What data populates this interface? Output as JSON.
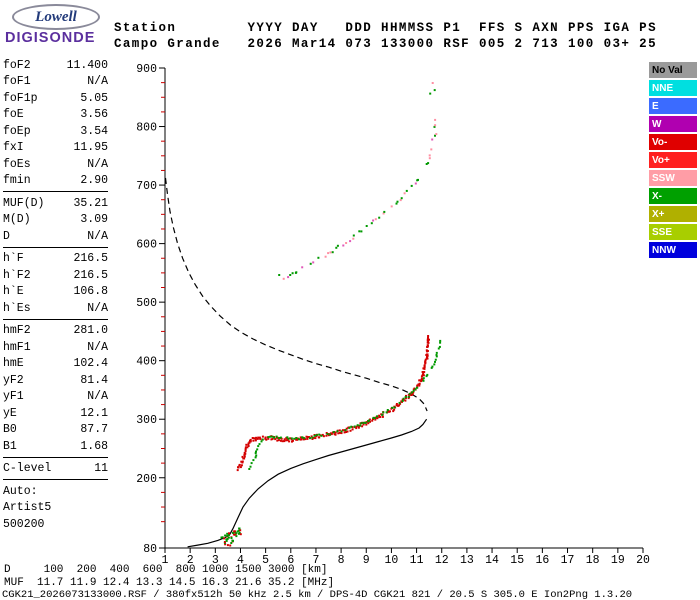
{
  "header": {
    "logo_top": "Lowell",
    "logo_bottom": "DIGISONDE",
    "line1": "Station        YYYY DAY   DDD HHMMSS P1  FFS S AXN PPS IGA PS",
    "line2": "Campo Grande   2026 Mar14 073 133000 RSF 005 2 713 100 03+ 25"
  },
  "params": {
    "groups": [
      {
        "rows": [
          [
            "foF2",
            "11.400"
          ],
          [
            "foF1",
            "N/A"
          ],
          [
            "foF1p",
            "5.05"
          ],
          [
            "foE",
            "3.56"
          ],
          [
            "foEp",
            "3.54"
          ],
          [
            "fxI",
            "11.95"
          ],
          [
            "foEs",
            "N/A"
          ],
          [
            "fmin",
            "2.90"
          ]
        ]
      },
      {
        "rows": [
          [
            "MUF(D)",
            "35.21"
          ],
          [
            "M(D)",
            "3.09"
          ],
          [
            "D",
            "N/A"
          ]
        ]
      },
      {
        "rows": [
          [
            "h`F",
            "216.5"
          ],
          [
            "h`F2",
            "216.5"
          ],
          [
            "h`E",
            "106.8"
          ],
          [
            "h`Es",
            "N/A"
          ]
        ]
      },
      {
        "rows": [
          [
            "hmF2",
            "281.0"
          ],
          [
            "hmF1",
            "N/A"
          ],
          [
            "hmE",
            "102.4"
          ],
          [
            "yF2",
            "81.4"
          ],
          [
            "yF1",
            "N/A"
          ],
          [
            "yE",
            "12.1"
          ],
          [
            "B0",
            "87.7"
          ],
          [
            "B1",
            "1.68"
          ]
        ]
      },
      {
        "rows": [
          [
            "C-level",
            "11"
          ]
        ]
      },
      {
        "rows": [
          [
            "Auto:",
            ""
          ],
          [
            "Artist5",
            ""
          ],
          [
            "500200",
            ""
          ]
        ]
      }
    ]
  },
  "legend": {
    "items": [
      {
        "label": "No Val",
        "bg": "#9a9a9a",
        "fg": "#000000"
      },
      {
        "label": "NNE",
        "bg": "#00dfe0",
        "fg": "#ffffff"
      },
      {
        "label": "E",
        "bg": "#3b6bff",
        "fg": "#ffffff"
      },
      {
        "label": "W",
        "bg": "#b000b0",
        "fg": "#ffffff"
      },
      {
        "label": "Vo-",
        "bg": "#e00000",
        "fg": "#ffffff"
      },
      {
        "label": "Vo+",
        "bg": "#ff2020",
        "fg": "#ffffff"
      },
      {
        "label": "SSW",
        "bg": "#ff9da6",
        "fg": "#ffffff"
      },
      {
        "label": "X-",
        "bg": "#00a000",
        "fg": "#ffffff"
      },
      {
        "label": "X+",
        "bg": "#b0b000",
        "fg": "#ffffff"
      },
      {
        "label": "SSE",
        "bg": "#a8ce00",
        "fg": "#ffffff"
      },
      {
        "label": "NNW",
        "bg": "#0000dd",
        "fg": "#ffffff"
      }
    ]
  },
  "footer": {
    "d_row": "D     100  200  400  600  800 1000 1500 3000 [km]",
    "muf_row": "MUF  11.7 11.9 12.4 13.3 14.5 16.3 21.6 35.2 [MHz]",
    "file_row": "CGK21_2026073133000.RSF / 380fx512h 50 kHz 2.5 km / DPS-4D CGK21 821 / 20.5 S 305.0 E Ion2Png 1.3.20"
  },
  "chart_data": {
    "type": "scatter",
    "title": "",
    "xlabel": "",
    "ylabel": "",
    "x_range": [
      1,
      20
    ],
    "y_range": [
      80,
      900
    ],
    "x_ticks": [
      1,
      2,
      3,
      4,
      5,
      6,
      7,
      8,
      9,
      10,
      11,
      12,
      13,
      14,
      15,
      16,
      17,
      18,
      19,
      20
    ],
    "y_ticks": [
      80,
      200,
      300,
      400,
      500,
      600,
      700,
      800,
      900
    ],
    "grid": false,
    "series": [
      {
        "name": "transmission-curve",
        "style": "dashed",
        "colors": [
          "#000000"
        ],
        "points": [
          [
            1.02,
            712
          ],
          [
            1.1,
            684
          ],
          [
            1.2,
            655
          ],
          [
            1.33,
            628
          ],
          [
            1.5,
            600
          ],
          [
            1.7,
            575
          ],
          [
            1.95,
            550
          ],
          [
            2.2,
            530
          ],
          [
            2.5,
            510
          ],
          [
            2.8,
            494
          ],
          [
            3.2,
            476
          ],
          [
            3.6,
            461
          ],
          [
            4.0,
            449
          ],
          [
            4.5,
            437
          ],
          [
            5.0,
            427
          ],
          [
            5.5,
            418
          ],
          [
            6.0,
            410
          ],
          [
            6.5,
            402
          ],
          [
            7.0,
            395
          ],
          [
            7.5,
            389
          ],
          [
            8.0,
            382
          ],
          [
            8.5,
            376
          ],
          [
            9.0,
            370
          ],
          [
            9.5,
            363
          ],
          [
            10.0,
            357
          ],
          [
            10.4,
            351
          ],
          [
            10.8,
            343
          ],
          [
            11.1,
            335
          ],
          [
            11.3,
            326
          ],
          [
            11.42,
            314
          ]
        ]
      },
      {
        "name": "true-height-profile",
        "style": "line",
        "colors": [
          "#000000"
        ],
        "points": [
          [
            1.9,
            82
          ],
          [
            2.3,
            85
          ],
          [
            2.7,
            88
          ],
          [
            3.1,
            93
          ],
          [
            3.4,
            98
          ],
          [
            3.56,
            102
          ],
          [
            3.7,
            113
          ],
          [
            3.9,
            132
          ],
          [
            4.1,
            150
          ],
          [
            4.35,
            165
          ],
          [
            4.7,
            181
          ],
          [
            5.1,
            195
          ],
          [
            5.5,
            206
          ],
          [
            6.0,
            216
          ],
          [
            6.5,
            224
          ],
          [
            7.0,
            231
          ],
          [
            7.5,
            238
          ],
          [
            8.0,
            244
          ],
          [
            8.5,
            250
          ],
          [
            9.0,
            256
          ],
          [
            9.5,
            262
          ],
          [
            10.0,
            268
          ],
          [
            10.4,
            273
          ],
          [
            10.8,
            279
          ],
          [
            11.1,
            285
          ],
          [
            11.25,
            291
          ],
          [
            11.4,
            300
          ]
        ]
      },
      {
        "name": "f-trace-o-mode",
        "style": "dots",
        "colors": [
          "#d40000"
        ],
        "points": [
          [
            3.85,
            216
          ],
          [
            3.95,
            221
          ],
          [
            4.05,
            230
          ],
          [
            4.15,
            244
          ],
          [
            4.25,
            257
          ],
          [
            4.4,
            264
          ],
          [
            4.6,
            267
          ],
          [
            4.85,
            268
          ],
          [
            5.1,
            268
          ],
          [
            5.4,
            266
          ],
          [
            5.7,
            265
          ],
          [
            6.0,
            265
          ],
          [
            6.4,
            266
          ],
          [
            6.8,
            269
          ],
          [
            7.2,
            272
          ],
          [
            7.6,
            275
          ],
          [
            8.0,
            279
          ],
          [
            8.4,
            284
          ],
          [
            8.8,
            291
          ],
          [
            9.2,
            298
          ],
          [
            9.6,
            307
          ],
          [
            10.0,
            317
          ],
          [
            10.4,
            330
          ],
          [
            10.8,
            345
          ],
          [
            11.05,
            360
          ],
          [
            11.2,
            374
          ],
          [
            11.3,
            390
          ],
          [
            11.38,
            410
          ],
          [
            11.42,
            428
          ],
          [
            11.45,
            445
          ]
        ]
      },
      {
        "name": "f-trace-x-mode",
        "style": "dots",
        "colors": [
          "#009900"
        ],
        "points": [
          [
            4.3,
            217
          ],
          [
            4.4,
            223
          ],
          [
            4.5,
            233
          ],
          [
            4.6,
            247
          ],
          [
            4.7,
            259
          ],
          [
            4.85,
            266
          ],
          [
            5.05,
            270
          ],
          [
            5.3,
            271
          ],
          [
            5.6,
            270
          ],
          [
            5.9,
            269
          ],
          [
            6.3,
            269
          ],
          [
            6.7,
            271
          ],
          [
            7.1,
            274
          ],
          [
            7.5,
            277
          ],
          [
            7.9,
            281
          ],
          [
            8.3,
            286
          ],
          [
            8.7,
            292
          ],
          [
            9.1,
            300
          ],
          [
            9.5,
            308
          ],
          [
            9.9,
            318
          ],
          [
            10.3,
            330
          ],
          [
            10.7,
            344
          ],
          [
            11.1,
            360
          ],
          [
            11.4,
            378
          ],
          [
            11.6,
            393
          ],
          [
            11.75,
            408
          ],
          [
            11.85,
            422
          ],
          [
            11.92,
            440
          ]
        ]
      },
      {
        "name": "multi-hop-trace",
        "style": "dots",
        "colors": [
          "#ff8fa3",
          "#ff8fa3",
          "#009900",
          "#009900",
          "#e058b8"
        ],
        "points": [
          [
            5.6,
            540
          ],
          [
            5.9,
            547
          ],
          [
            6.2,
            554
          ],
          [
            6.6,
            563
          ],
          [
            7.0,
            573
          ],
          [
            7.4,
            583
          ],
          [
            7.8,
            594
          ],
          [
            8.2,
            605
          ],
          [
            8.6,
            617
          ],
          [
            9.0,
            630
          ],
          [
            9.4,
            644
          ],
          [
            9.8,
            658
          ],
          [
            10.2,
            673
          ],
          [
            10.6,
            690
          ],
          [
            10.9,
            704
          ],
          [
            11.2,
            722
          ],
          [
            11.4,
            740
          ],
          [
            11.55,
            760
          ],
          [
            11.65,
            780
          ],
          [
            11.72,
            800
          ],
          [
            11.78,
            818
          ]
        ]
      },
      {
        "name": "e-region-echoes",
        "style": "cluster",
        "colors": [
          "#d40000",
          "#009900"
        ],
        "points": [
          [
            3.25,
            100
          ],
          [
            3.35,
            103
          ],
          [
            3.35,
            88
          ],
          [
            3.45,
            97
          ],
          [
            3.5,
            104
          ],
          [
            3.55,
            86
          ],
          [
            3.6,
            100
          ],
          [
            3.65,
            93
          ],
          [
            3.7,
            105
          ],
          [
            3.75,
            109
          ],
          [
            3.8,
            102
          ],
          [
            3.85,
            110
          ],
          [
            3.9,
            106
          ],
          [
            3.95,
            112
          ]
        ]
      },
      {
        "name": "noise-specks",
        "style": "cluster",
        "colors": [
          "#009900",
          "#ff8fa3"
        ],
        "points": [
          [
            11.5,
            858
          ],
          [
            11.6,
            876
          ],
          [
            11.68,
            864
          ],
          [
            5.5,
            548
          ]
        ]
      }
    ]
  }
}
